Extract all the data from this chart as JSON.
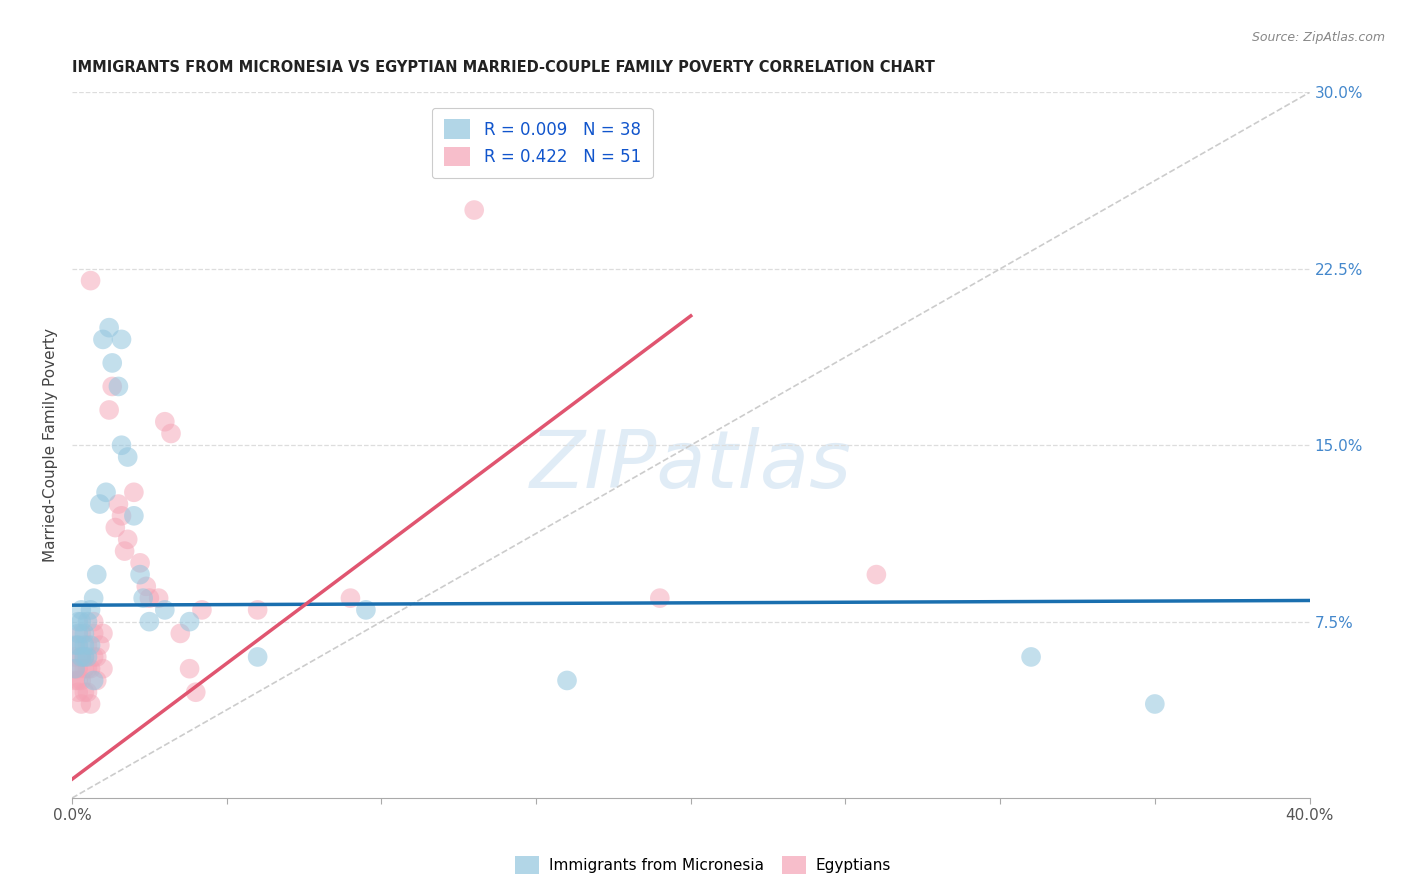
{
  "title": "IMMIGRANTS FROM MICRONESIA VS EGYPTIAN MARRIED-COUPLE FAMILY POVERTY CORRELATION CHART",
  "source": "Source: ZipAtlas.com",
  "ylabel": "Married-Couple Family Poverty",
  "xlim": [
    0.0,
    0.4
  ],
  "ylim": [
    -0.01,
    0.32
  ],
  "yplot_min": 0.0,
  "yplot_max": 0.3,
  "xticks": [
    0.0,
    0.05,
    0.1,
    0.15,
    0.2,
    0.25,
    0.3,
    0.35,
    0.4
  ],
  "yticks_right": [
    0.075,
    0.15,
    0.225,
    0.3
  ],
  "yticklabels_right": [
    "7.5%",
    "15.0%",
    "22.5%",
    "30.0%"
  ],
  "legend_label1": "Immigrants from Micronesia",
  "legend_label2": "Egyptians",
  "color_blue_scatter": "#92c5de",
  "color_pink_scatter": "#f4a3b5",
  "color_trend_blue": "#1a6faf",
  "color_trend_pink": "#e05570",
  "color_diag": "#cccccc",
  "watermark": "ZIPatlas",
  "blue_trend_start_y": 0.082,
  "blue_trend_end_y": 0.084,
  "pink_trend_start_y": 0.008,
  "pink_trend_end_y": 0.205,
  "blue_x": [
    0.001,
    0.001,
    0.002,
    0.002,
    0.002,
    0.003,
    0.003,
    0.003,
    0.004,
    0.004,
    0.004,
    0.005,
    0.005,
    0.006,
    0.006,
    0.007,
    0.007,
    0.008,
    0.009,
    0.01,
    0.011,
    0.012,
    0.013,
    0.015,
    0.016,
    0.016,
    0.018,
    0.02,
    0.022,
    0.023,
    0.025,
    0.03,
    0.038,
    0.06,
    0.095,
    0.16,
    0.31,
    0.35
  ],
  "blue_y": [
    0.055,
    0.065,
    0.075,
    0.07,
    0.065,
    0.06,
    0.075,
    0.08,
    0.07,
    0.065,
    0.06,
    0.075,
    0.06,
    0.08,
    0.065,
    0.085,
    0.05,
    0.095,
    0.125,
    0.195,
    0.13,
    0.2,
    0.185,
    0.175,
    0.195,
    0.15,
    0.145,
    0.12,
    0.095,
    0.085,
    0.075,
    0.08,
    0.075,
    0.06,
    0.08,
    0.05,
    0.06,
    0.04
  ],
  "pink_x": [
    0.001,
    0.001,
    0.001,
    0.002,
    0.002,
    0.002,
    0.002,
    0.003,
    0.003,
    0.003,
    0.003,
    0.004,
    0.004,
    0.004,
    0.005,
    0.005,
    0.005,
    0.006,
    0.006,
    0.006,
    0.007,
    0.007,
    0.007,
    0.008,
    0.008,
    0.009,
    0.01,
    0.01,
    0.012,
    0.013,
    0.014,
    0.015,
    0.016,
    0.017,
    0.018,
    0.02,
    0.022,
    0.024,
    0.025,
    0.028,
    0.03,
    0.032,
    0.035,
    0.038,
    0.04,
    0.042,
    0.06,
    0.09,
    0.13,
    0.19,
    0.26
  ],
  "pink_y": [
    0.05,
    0.055,
    0.06,
    0.045,
    0.05,
    0.055,
    0.065,
    0.04,
    0.05,
    0.06,
    0.07,
    0.045,
    0.055,
    0.06,
    0.045,
    0.055,
    0.065,
    0.04,
    0.055,
    0.22,
    0.06,
    0.07,
    0.075,
    0.05,
    0.06,
    0.065,
    0.055,
    0.07,
    0.165,
    0.175,
    0.115,
    0.125,
    0.12,
    0.105,
    0.11,
    0.13,
    0.1,
    0.09,
    0.085,
    0.085,
    0.16,
    0.155,
    0.07,
    0.055,
    0.045,
    0.08,
    0.08,
    0.085,
    0.25,
    0.085,
    0.095
  ]
}
